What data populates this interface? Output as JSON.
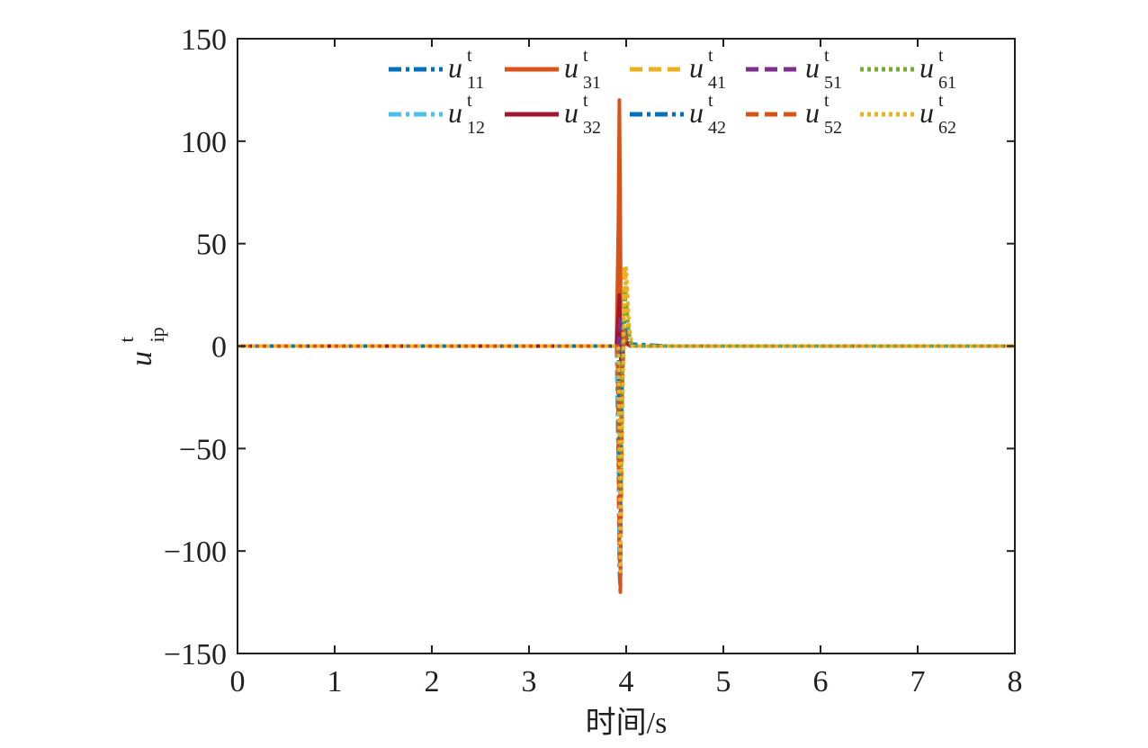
{
  "chart_data": {
    "type": "line",
    "xlabel": "时间/s",
    "ylabel": {
      "base": "u",
      "sup": "t",
      "sub": "ip"
    },
    "xlim": [
      0,
      8
    ],
    "ylim": [
      -150,
      150
    ],
    "x_ticks": [
      0,
      1,
      2,
      3,
      4,
      5,
      6,
      7,
      8
    ],
    "y_ticks": [
      150,
      100,
      50,
      0,
      -50,
      -100,
      -150
    ],
    "y_tick_labels": [
      "150",
      "100",
      "50",
      "0",
      "−50",
      "−100",
      "−150"
    ],
    "grid": false,
    "legend_position": "top",
    "series": [
      {
        "name": "u11",
        "label_base": "u",
        "label_sup": "t",
        "label_sub": "11",
        "color": "#0072bd",
        "dash": "dashdot",
        "x": [
          0,
          3.9,
          3.92,
          3.93,
          3.94,
          3.95,
          3.96,
          3.98,
          4.0,
          4.05,
          4.45,
          8
        ],
        "y": [
          0,
          0,
          -60,
          -110,
          -120,
          -30,
          10,
          6,
          2,
          1,
          0,
          0
        ]
      },
      {
        "name": "u12",
        "label_base": "u",
        "label_sup": "t",
        "label_sub": "12",
        "color": "#4dbeee",
        "dash": "dashdot",
        "x": [
          0,
          3.9,
          3.92,
          3.93,
          3.94,
          3.95,
          3.97,
          4.0,
          4.05,
          8
        ],
        "y": [
          0,
          0,
          -50,
          -100,
          -118,
          -20,
          5,
          2,
          0,
          0
        ]
      },
      {
        "name": "u31",
        "label_base": "u",
        "label_sup": "t",
        "label_sub": "31",
        "color": "#d95319",
        "dash": "solid",
        "x": [
          0,
          3.9,
          3.92,
          3.93,
          3.94,
          3.95,
          3.96,
          3.98,
          4.0,
          4.05,
          8
        ],
        "y": [
          0,
          0,
          60,
          120,
          60,
          -40,
          10,
          3,
          1,
          0,
          0
        ]
      },
      {
        "name": "u32",
        "label_base": "u",
        "label_sup": "t",
        "label_sub": "32",
        "color": "#a2142f",
        "dash": "solid",
        "x": [
          0,
          3.9,
          3.93,
          3.95,
          3.97,
          4.0,
          4.05,
          8
        ],
        "y": [
          0,
          0,
          25,
          -15,
          8,
          2,
          0,
          0
        ]
      },
      {
        "name": "u41",
        "label_base": "u",
        "label_sup": "t",
        "label_sub": "41",
        "color": "#edb120",
        "dash": "dashed",
        "x": [
          0,
          3.92,
          3.94,
          3.96,
          3.98,
          4.0,
          4.02,
          4.05,
          8
        ],
        "y": [
          0,
          0,
          -80,
          -20,
          40,
          30,
          8,
          0,
          0
        ]
      },
      {
        "name": "u42",
        "label_base": "u",
        "label_sup": "t",
        "label_sub": "42",
        "color": "#0072bd",
        "dash": "dashdot",
        "x": [
          0,
          3.92,
          3.94,
          3.96,
          3.98,
          4.0,
          4.05,
          8
        ],
        "y": [
          0,
          0,
          -90,
          -10,
          12,
          4,
          0,
          0
        ]
      },
      {
        "name": "u51",
        "label_base": "u",
        "label_sup": "t",
        "label_sub": "51",
        "color": "#7e2f8e",
        "dash": "dashed",
        "x": [
          0,
          3.92,
          3.94,
          3.96,
          3.98,
          4.0,
          4.05,
          8
        ],
        "y": [
          0,
          0,
          15,
          -10,
          6,
          2,
          0,
          0
        ]
      },
      {
        "name": "u52",
        "label_base": "u",
        "label_sup": "t",
        "label_sub": "52",
        "color": "#d95319",
        "dash": "dashed",
        "x": [
          0,
          3.91,
          3.93,
          3.94,
          3.96,
          3.98,
          4.0,
          4.05,
          8
        ],
        "y": [
          0,
          0,
          -100,
          -120,
          -20,
          8,
          2,
          0,
          0
        ]
      },
      {
        "name": "u61",
        "label_base": "u",
        "label_sup": "t",
        "label_sub": "61",
        "color": "#77ac30",
        "dash": "dotted",
        "x": [
          0,
          3.92,
          3.94,
          3.96,
          3.98,
          4.0,
          4.03,
          4.06,
          8
        ],
        "y": [
          0,
          0,
          -70,
          -10,
          28,
          20,
          6,
          0,
          0
        ]
      },
      {
        "name": "u62",
        "label_base": "u",
        "label_sup": "t",
        "label_sub": "62",
        "color": "#edb120",
        "dash": "dotted",
        "x": [
          0,
          3.92,
          3.94,
          3.96,
          3.98,
          4.0,
          4.03,
          4.06,
          8
        ],
        "y": [
          0,
          0,
          -110,
          -40,
          20,
          38,
          10,
          0,
          0
        ]
      }
    ],
    "legend_order": [
      "u11",
      "u31",
      "u41",
      "u51",
      "u61",
      "u12",
      "u32",
      "u42",
      "u52",
      "u62"
    ]
  }
}
